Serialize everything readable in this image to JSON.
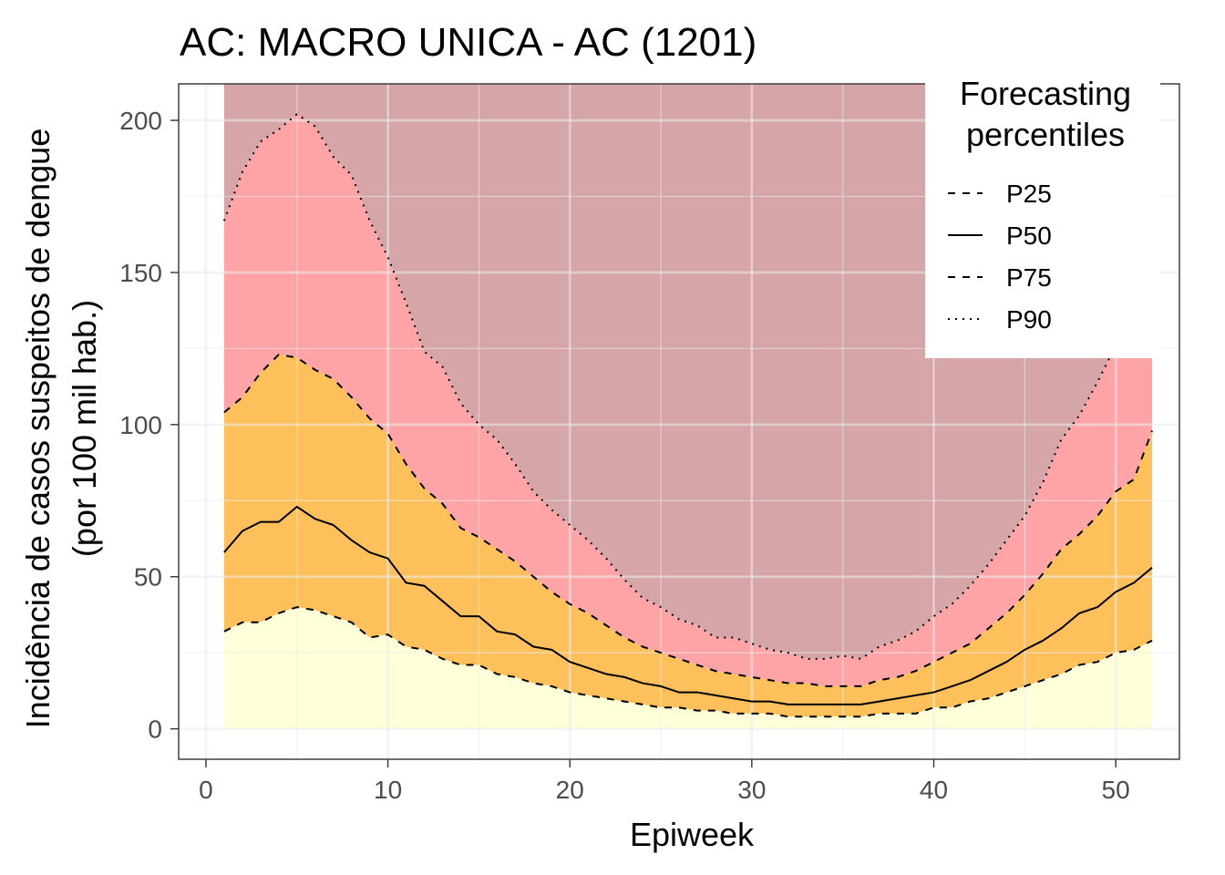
{
  "chart_data": {
    "type": "area",
    "title": "AC: MACRO UNICA - AC (1201)",
    "xlabel": "Epiweek",
    "ylabel_line1": "Incidência de casos suspeitos de dengue",
    "ylabel_line2": "(por 100 mil hab.)",
    "xlim": [
      -1.5,
      53.5
    ],
    "ylim": [
      -10,
      212
    ],
    "x_ticks": [
      0,
      10,
      20,
      30,
      40,
      50
    ],
    "x_tick_labels": [
      "0",
      "10",
      "20",
      "30",
      "40",
      "50"
    ],
    "y_ticks": [
      0,
      50,
      100,
      150,
      200
    ],
    "y_tick_labels": [
      "0",
      "50",
      "100",
      "150",
      "200"
    ],
    "grid": true,
    "legend": {
      "title_line1": "Forecasting",
      "title_line2": "percentiles",
      "position": "top-right",
      "entries": [
        {
          "label": "P25",
          "linetype": "dashed"
        },
        {
          "label": "P50",
          "linetype": "solid"
        },
        {
          "label": "P75",
          "linetype": "dashed"
        },
        {
          "label": "P90",
          "linetype": "dotted"
        }
      ]
    },
    "band_colors": {
      "below_p25": "#ffffd9",
      "p25_to_p75": "#fdc05a",
      "p75_to_p90": "#fea4a6",
      "above_p90": "#d5a5a7"
    },
    "band_top": 212,
    "x": [
      1,
      2,
      3,
      4,
      5,
      6,
      7,
      8,
      9,
      10,
      11,
      12,
      13,
      14,
      15,
      16,
      17,
      18,
      19,
      20,
      21,
      22,
      23,
      24,
      25,
      26,
      27,
      28,
      29,
      30,
      31,
      32,
      33,
      34,
      35,
      36,
      37,
      38,
      39,
      40,
      41,
      42,
      43,
      44,
      45,
      46,
      47,
      48,
      49,
      50,
      51,
      52
    ],
    "series": [
      {
        "name": "P25",
        "values": [
          32,
          35,
          35,
          38,
          40,
          39,
          37,
          35,
          30,
          31,
          27,
          26,
          23,
          21,
          21,
          18,
          17,
          15,
          14,
          12,
          11,
          10,
          9,
          8,
          7,
          7,
          6,
          6,
          5,
          5,
          5,
          4,
          4,
          4,
          4,
          4,
          5,
          5,
          5,
          7,
          7,
          9,
          10,
          12,
          14,
          16,
          18,
          21,
          22,
          25,
          26,
          29
        ]
      },
      {
        "name": "P50",
        "values": [
          58,
          65,
          68,
          68,
          73,
          69,
          67,
          62,
          58,
          56,
          48,
          47,
          42,
          37,
          37,
          32,
          31,
          27,
          26,
          22,
          20,
          18,
          17,
          15,
          14,
          12,
          12,
          11,
          10,
          9,
          9,
          8,
          8,
          8,
          8,
          8,
          9,
          10,
          11,
          12,
          14,
          16,
          19,
          22,
          26,
          29,
          33,
          38,
          40,
          45,
          48,
          53
        ]
      },
      {
        "name": "P75",
        "values": [
          104,
          109,
          117,
          123,
          122,
          118,
          115,
          109,
          102,
          97,
          87,
          79,
          74,
          66,
          63,
          59,
          55,
          50,
          45,
          41,
          38,
          34,
          30,
          27,
          25,
          23,
          21,
          19,
          18,
          17,
          16,
          15,
          15,
          14,
          14,
          14,
          16,
          17,
          19,
          22,
          25,
          28,
          33,
          38,
          44,
          51,
          59,
          64,
          70,
          78,
          82,
          98
        ]
      },
      {
        "name": "P90",
        "values": [
          167,
          183,
          193,
          197,
          202,
          198,
          188,
          182,
          167,
          155,
          140,
          124,
          119,
          107,
          100,
          95,
          87,
          78,
          72,
          67,
          62,
          56,
          49,
          43,
          40,
          36,
          34,
          30,
          30,
          28,
          26,
          25,
          23,
          23,
          24,
          23,
          27,
          29,
          32,
          37,
          41,
          47,
          54,
          62,
          70,
          81,
          95,
          103,
          114,
          126,
          135,
          155
        ]
      }
    ]
  }
}
